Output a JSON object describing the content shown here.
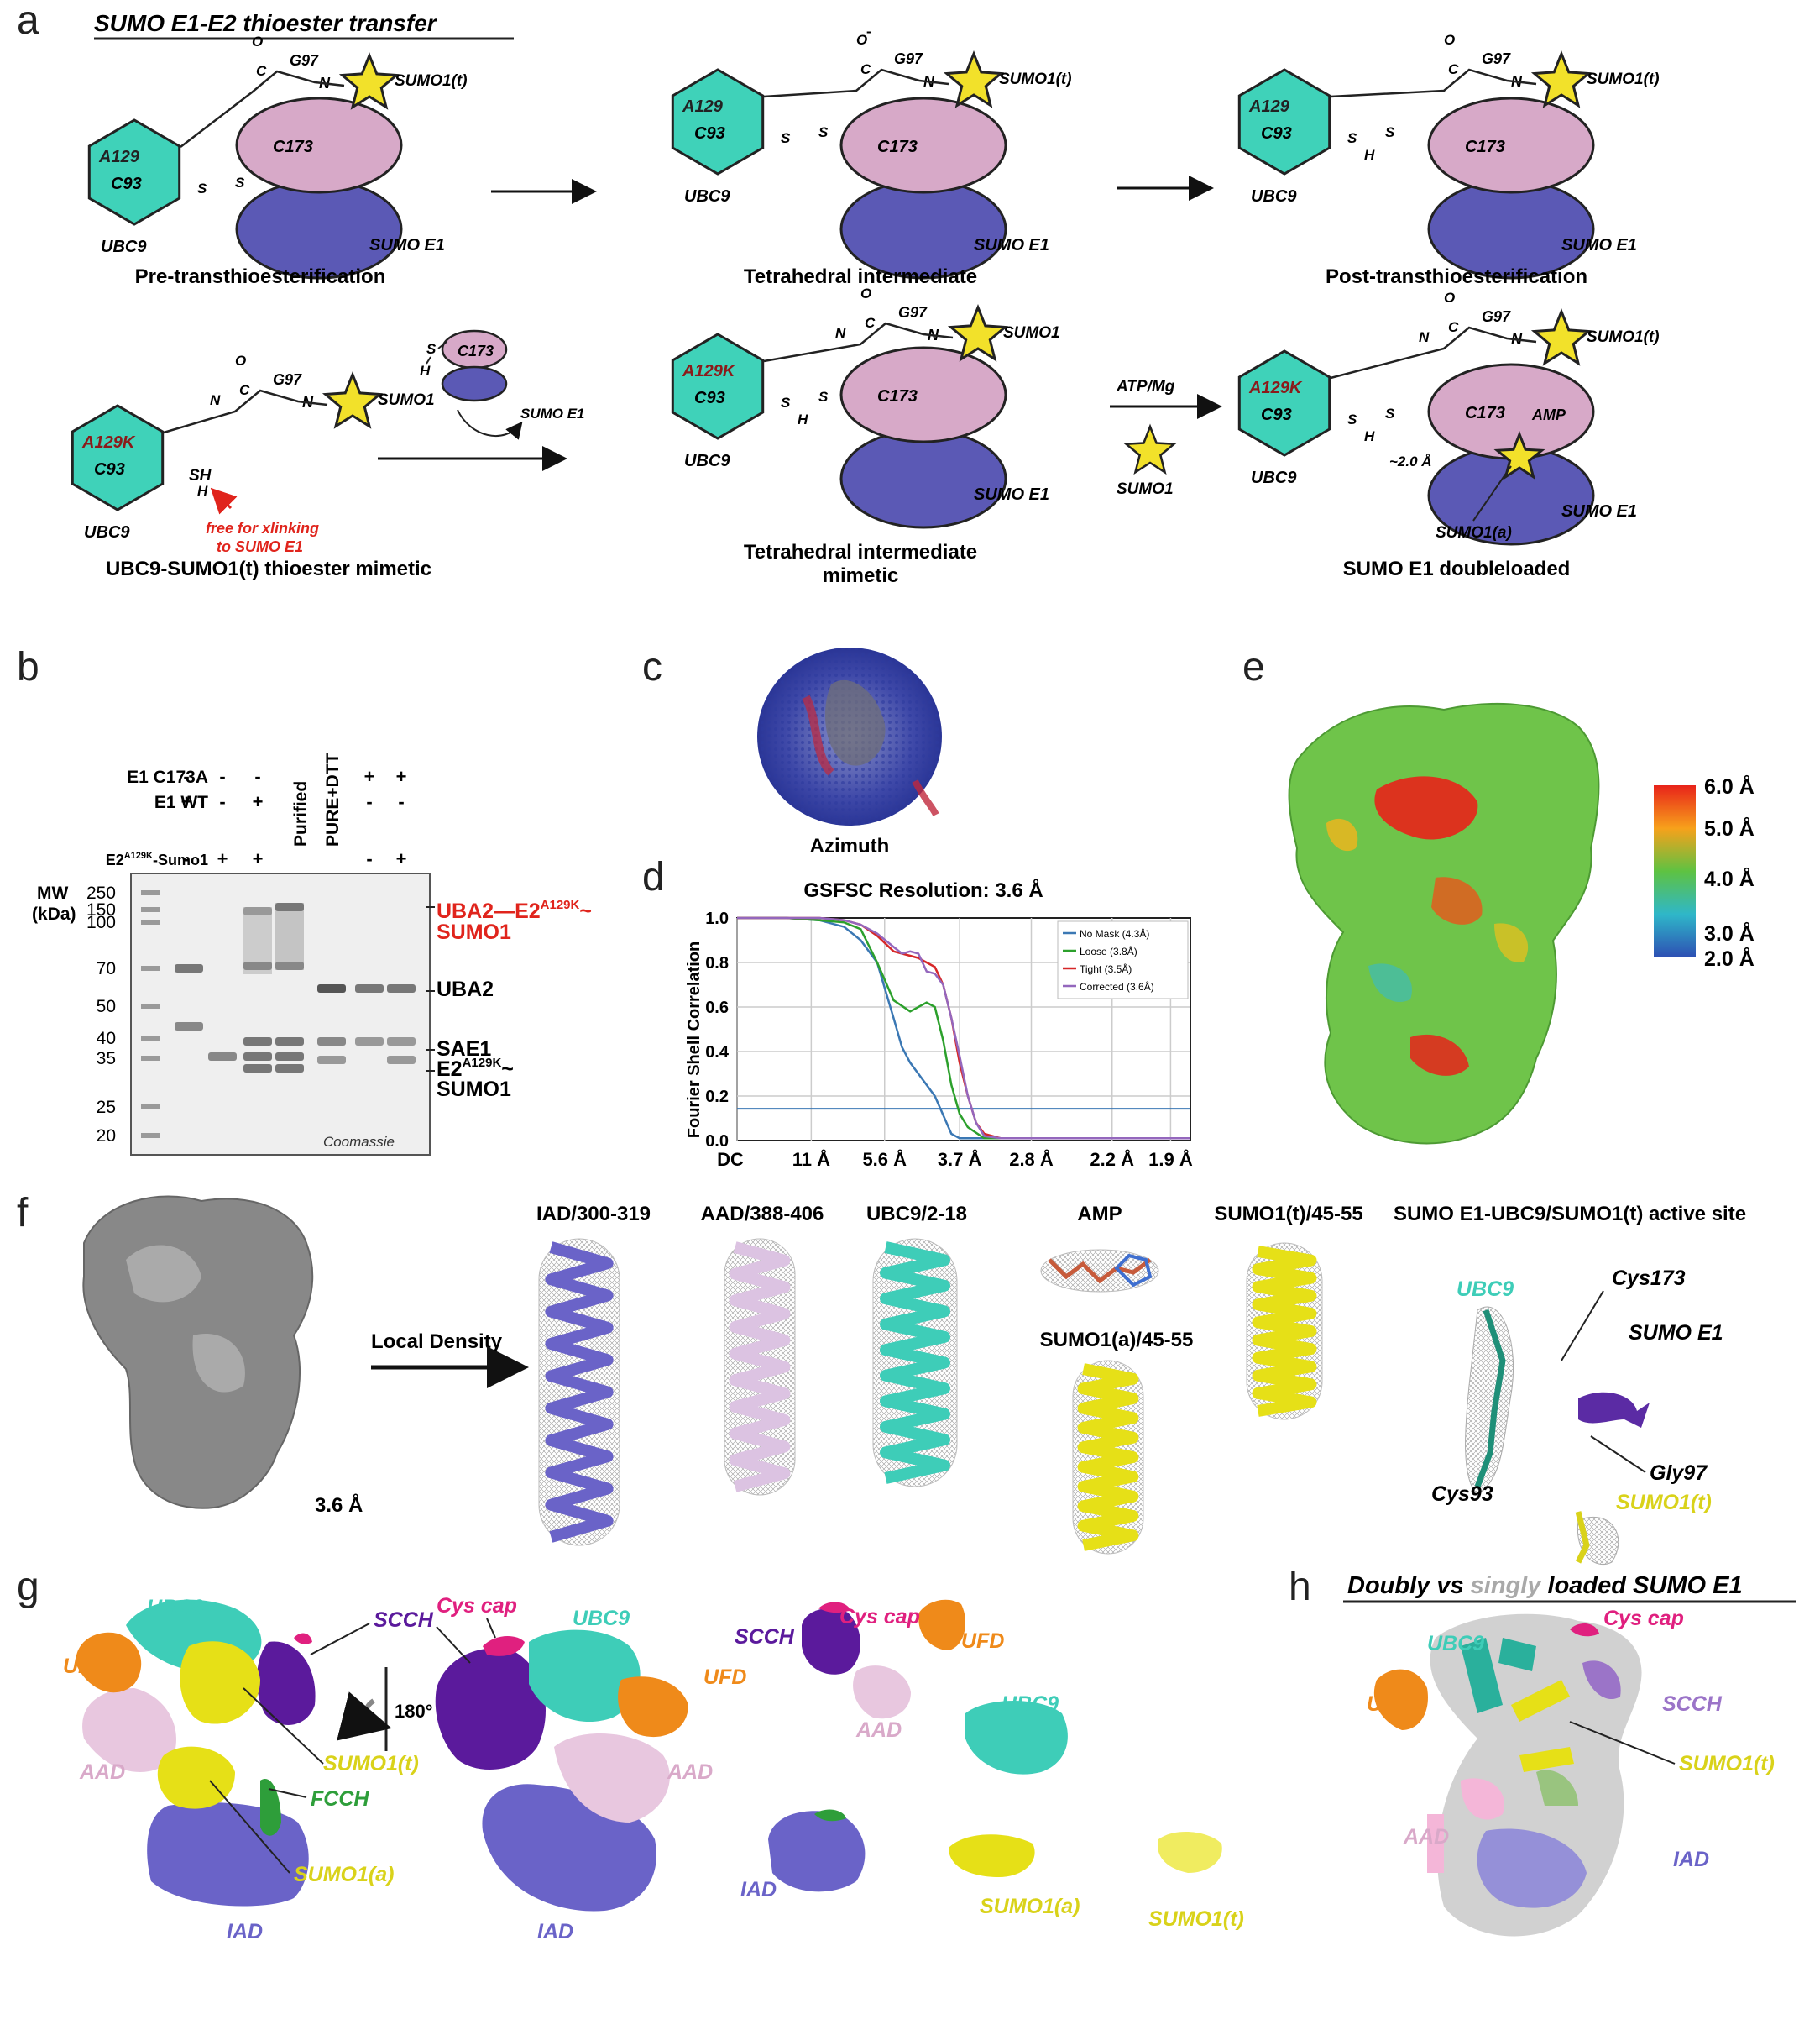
{
  "panel_letters": {
    "a": "a",
    "b": "b",
    "c": "c",
    "d": "d",
    "e": "e",
    "f": "f",
    "g": "g",
    "h": "h"
  },
  "panel_a": {
    "title": "SUMO E1-E2 thioester transfer",
    "schemes": [
      {
        "label": "Pre-transthioesterification",
        "c_site": "C173",
        "e2_res1": "A129",
        "e2_res2": "C93",
        "e2_name": "UBC9",
        "e1_name": "SUMO E1",
        "sumo": "SUMO1(t)",
        "gly": "G97",
        "atoms": {
          "o": "O",
          "c": "C",
          "s1": "S",
          "s2": "S",
          "n": "N"
        }
      },
      {
        "label": "Tetrahedral intermediate",
        "c_site": "C173",
        "e2_res1": "A129",
        "e2_res2": "C93",
        "e2_name": "UBC9",
        "e1_name": "SUMO E1",
        "sumo": "SUMO1(t)",
        "gly": "G97",
        "atoms": {
          "o": "O",
          "c": "C",
          "s1": "S",
          "s2": "S",
          "n": "N",
          "minus": "-"
        }
      },
      {
        "label": "Post-transthioesterification",
        "c_site": "C173",
        "e2_res1": "A129",
        "e2_res2": "C93",
        "e2_name": "UBC9",
        "e1_name": "SUMO E1",
        "sumo": "SUMO1(t)",
        "gly": "G97",
        "atoms": {
          "o": "O",
          "c": "C",
          "s1": "S",
          "s2": "S",
          "h": "H",
          "n": "N"
        }
      },
      {
        "label": "UBC9-SUMO1(t) thioester mimetic",
        "e2_res1": "A129K",
        "e2_res2": "C93",
        "e2_name": "UBC9",
        "sumo": "SUMO1",
        "gly": "G97",
        "sh": "SH",
        "note_line1": "free for xlinking",
        "note_line2": "to SUMO E1",
        "atoms": {
          "o": "O",
          "c": "C",
          "h": "H",
          "n1": "N",
          "n2": "N"
        }
      },
      {
        "label": "Tetrahedral intermediate mimetic",
        "c_site": "C173",
        "e2_res1": "A129K",
        "e2_res2": "C93",
        "e2_name": "UBC9",
        "e1_name": "SUMO E1",
        "sumo": "SUMO1",
        "gly": "G97",
        "atoms": {
          "o": "O",
          "c": "C",
          "h": "H",
          "n1": "N",
          "n2": "N",
          "s1": "S",
          "s2": "S"
        }
      },
      {
        "label": "SUMO E1 doubleloaded",
        "c_site": "C173",
        "e2_res1": "A129K",
        "e2_res2": "C93",
        "e2_name": "UBC9",
        "e1_name": "SUMO E1",
        "sumo": "SUMO1(t)",
        "gly": "G97",
        "amp": "AMP",
        "dist": "~2.0 Å",
        "sumo_a": "SUMO1(a)",
        "atoms": {
          "o": "O",
          "c": "C",
          "h": "H",
          "n1": "N",
          "n2": "N",
          "s1": "S",
          "s2": "S"
        }
      }
    ],
    "small_e1": {
      "c_site": "C173",
      "s": "S",
      "h": "H",
      "label": "SUMO E1"
    },
    "reaction_condition": "ATP/Mg",
    "free_sumo": "SUMO1"
  },
  "panel_b": {
    "rows": [
      {
        "label": "E1 C173A",
        "values": [
          "-",
          "-",
          "-",
          "",
          "",
          "+",
          "+"
        ]
      },
      {
        "label": "E1 WT",
        "values": [
          "+",
          "-",
          "+",
          "",
          "",
          "-",
          "-"
        ]
      },
      {
        "label": "E2A129K-Sumo1",
        "values": [
          "-",
          "+",
          "+",
          "",
          "",
          "-",
          "+"
        ]
      }
    ],
    "col_labels": [
      "Purified",
      "PURE+DTT"
    ],
    "mw_label": "MW",
    "mw_unit": "(kDa)",
    "mw_markers": [
      "250",
      "150",
      "100",
      "70",
      "50",
      "40",
      "35",
      "25",
      "20"
    ],
    "band_labels": [
      {
        "text": "UBA2",
        "sup": "",
        "text2": "SUMO1",
        "color": "#e0241c",
        "full1": "UBA2—E2",
        "sup1": "A129K",
        "tail1": "~"
      },
      {
        "text": "UBA2",
        "color": "#222"
      },
      {
        "text": "SAE1",
        "color": "#222"
      },
      {
        "text": "E2",
        "sup": "A129K",
        "tail": "~",
        "text2": "SUMO1",
        "color": "#222"
      }
    ],
    "stain": "Coomassie"
  },
  "panel_c": {
    "label": "Azimuth"
  },
  "panel_d": {
    "chart_data": {
      "type": "line",
      "title": "GSFSC Resolution: 3.6 Å",
      "ylabel": "Fourier Shell Correlation",
      "xlabel": "",
      "x_tick_labels": [
        "DC",
        "11 Å",
        "5.6 Å",
        "3.7 Å",
        "2.8 Å",
        "2.2 Å",
        "1.9 Å"
      ],
      "y_tick_labels": [
        "0.0",
        "0.2",
        "0.4",
        "0.6",
        "0.8",
        "1.0"
      ],
      "ylim": [
        0,
        1.0
      ],
      "x_freq": [
        0,
        0.09,
        0.179,
        0.27,
        0.357,
        0.455,
        0.526
      ],
      "threshold": 0.143,
      "series": [
        {
          "name": "No Mask (4.3Å)",
          "color": "#3b78b4",
          "x": [
            0,
            0.06,
            0.1,
            0.13,
            0.15,
            0.17,
            0.19,
            0.2,
            0.21,
            0.22,
            0.24,
            0.26,
            0.27,
            0.55
          ],
          "y": [
            1,
            1,
            0.99,
            0.96,
            0.9,
            0.8,
            0.55,
            0.42,
            0.35,
            0.3,
            0.2,
            0.03,
            0.01,
            0.01
          ]
        },
        {
          "name": "Loose (3.8Å)",
          "color": "#2ca02c",
          "x": [
            0,
            0.06,
            0.1,
            0.13,
            0.15,
            0.17,
            0.19,
            0.21,
            0.23,
            0.24,
            0.25,
            0.26,
            0.27,
            0.28,
            0.3,
            0.55
          ],
          "y": [
            1,
            1,
            0.99,
            0.98,
            0.95,
            0.8,
            0.63,
            0.58,
            0.62,
            0.6,
            0.45,
            0.25,
            0.12,
            0.06,
            0.01,
            0.01
          ]
        },
        {
          "name": "Tight (3.5Å)",
          "color": "#d62728",
          "x": [
            0,
            0.06,
            0.1,
            0.13,
            0.15,
            0.17,
            0.19,
            0.21,
            0.22,
            0.23,
            0.24,
            0.25,
            0.26,
            0.27,
            0.28,
            0.29,
            0.3,
            0.32,
            0.55
          ],
          "y": [
            1,
            1,
            1,
            0.99,
            0.97,
            0.92,
            0.85,
            0.83,
            0.82,
            0.8,
            0.78,
            0.7,
            0.55,
            0.35,
            0.2,
            0.08,
            0.03,
            0.01,
            0.01
          ]
        },
        {
          "name": "Corrected (3.6Å)",
          "color": "#9467bd",
          "x": [
            0,
            0.06,
            0.1,
            0.13,
            0.15,
            0.17,
            0.19,
            0.2,
            0.21,
            0.22,
            0.23,
            0.24,
            0.25,
            0.26,
            0.27,
            0.28,
            0.29,
            0.3,
            0.32,
            0.55
          ],
          "y": [
            1,
            1,
            1,
            0.99,
            0.97,
            0.93,
            0.87,
            0.84,
            0.85,
            0.84,
            0.76,
            0.75,
            0.7,
            0.55,
            0.38,
            0.2,
            0.08,
            0.02,
            0.01,
            0.01
          ]
        }
      ]
    }
  },
  "panel_e": {
    "colorbar": {
      "labels": [
        "6.0 Å",
        "5.0 Å",
        "4.0 Å",
        "3.0 Å",
        "2.0 Å"
      ],
      "colors": [
        "#e8231a",
        "#f7a11b",
        "#5ec242",
        "#2fb7c9",
        "#2d4fb3"
      ]
    }
  },
  "panel_f": {
    "resolution": "3.6 Å",
    "arrow_label": "Local Density",
    "titles": [
      "IAD/300-319",
      "AAD/388-406",
      "UBC9/2-18",
      "AMP",
      "SUMO1(t)/45-55",
      "SUMO E1-UBC9/SUMO1(t) active site"
    ],
    "sub_title": "SUMO1(a)/45-55",
    "active_site_labels": {
      "ubc9": "UBC9",
      "cys173": "Cys173",
      "sumo_e1": "SUMO E1",
      "gly97": "Gly97",
      "cys93": "Cys93",
      "sumo1t": "SUMO1(t)"
    }
  },
  "panel_g": {
    "labels": {
      "ubc9": "UBC9",
      "cys_cap": "Cys cap",
      "scch": "SCCH",
      "ufd": "UFD",
      "aad": "AAD",
      "sumo1t": "SUMO1(t)",
      "fcch": "FCCH",
      "sumo1a": "SUMO1(a)",
      "iad": "IAD",
      "rot": "180°"
    },
    "colors": {
      "ubc9": "#3ecdb8",
      "cys_cap": "#e0207f",
      "scch": "#5b1a9c",
      "ufd": "#ef8a1a",
      "aad": "#e8c7df",
      "sumo1": "#e6e017",
      "fcch": "#2e9e3a",
      "iad": "#6a63c8"
    }
  },
  "panel_h": {
    "title_parts": [
      "Doubly vs ",
      "singly",
      " loaded SUMO E1"
    ],
    "labels": {
      "cys_cap": "Cys cap",
      "ubc9": "UBC9",
      "scch": "SCCH",
      "ufd": "UFD",
      "sumo1t": "SUMO1(t)",
      "aad": "AAD",
      "iad": "IAD"
    }
  }
}
